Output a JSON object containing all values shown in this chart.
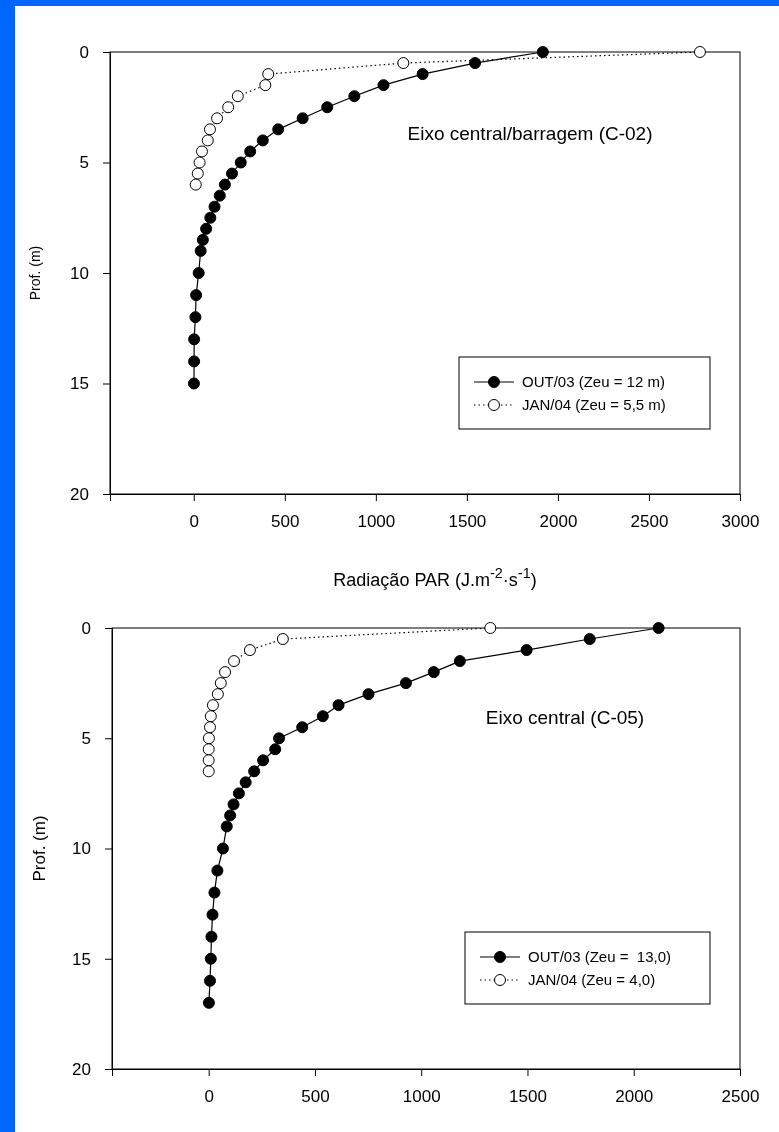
{
  "chart_data": [
    {
      "type": "line",
      "xlabel": "Radiação PAR (J.m$^{-2}$·s$^{-1}$)",
      "ylabel": "Prof. (m)",
      "annotations": [
        "Eixo central/barragem (C-02)"
      ],
      "xlim": [
        -460,
        3000
      ],
      "xticks": [
        0,
        500,
        1000,
        1500,
        2000,
        2500,
        3000
      ],
      "ylim": [
        20,
        0
      ],
      "yticks": [
        0,
        5,
        10,
        15,
        20
      ],
      "grid": false,
      "legend": "bottom right",
      "marker": "circle",
      "series": [
        {
          "name": "OUT/03 (Zeu = 12 m)",
          "color": "#000000",
          "line_style": "solid",
          "x": [
            1917,
            1545,
            1257,
            1042,
            882,
            733,
            598,
            464,
            379,
            310,
            258,
            210,
            171,
            143,
            114,
            91,
            68,
            50,
            38,
            27,
            13,
            9,
            2,
            2,
            1
          ],
          "values": [
            0,
            0.5,
            1,
            1.5,
            2,
            2.5,
            3,
            3.5,
            4,
            4.5,
            5,
            5.5,
            6,
            6.5,
            7,
            7.5,
            8,
            8.5,
            9,
            10,
            11,
            12,
            13,
            14,
            15
          ]
        },
        {
          "name": "JAN/04 (Zeu = 5,5 m)",
          "color": "#ffffff",
          "line_style": "dotted",
          "x": [
            2780,
            1151,
            409,
            393,
            242,
            189,
            128,
            89,
            77,
            45,
            32,
            22,
            11
          ],
          "values": [
            0,
            0.5,
            1,
            1.5,
            2,
            2.5,
            3,
            3.5,
            4,
            4.5,
            5,
            5.5,
            6
          ]
        }
      ]
    },
    {
      "type": "line",
      "ylabel": "Prof. (m)",
      "annotations": [
        "Eixo central (C-05)"
      ],
      "xlim": [
        -455,
        2500
      ],
      "xticks": [
        0,
        500,
        1000,
        1500,
        2000,
        2500
      ],
      "ylim": [
        20,
        0
      ],
      "yticks": [
        0,
        5,
        10,
        15,
        20
      ],
      "grid": false,
      "legend": "bottom right",
      "marker": "circle",
      "series": [
        {
          "name": "OUT/03 (Zeu =  13,0)",
          "color": "#000000",
          "line_style": "solid",
          "x": [
            2117,
            1793,
            1496,
            1182,
            1059,
            928,
            752,
            611,
            537,
            440,
            331,
            313,
            256,
            214,
            174,
            142,
            117,
            101,
            85,
            67,
            41,
            27,
            18,
            13,
            10,
            6,
            1
          ],
          "values": [
            0,
            0.5,
            1,
            1.5,
            2,
            2.5,
            3,
            3.5,
            4,
            4.5,
            5,
            5.5,
            6,
            6.5,
            7,
            7.5,
            8,
            8.5,
            9,
            10,
            11,
            12,
            13,
            14,
            15,
            16,
            17
          ]
        },
        {
          "name": "JAN/04 (Zeu = 4,0)",
          "color": "#ffffff",
          "line_style": "dotted",
          "x": [
            1325,
            349,
            194,
            119,
            77,
            57,
            43,
            20,
            10,
            6,
            1,
            0,
            0,
            0
          ],
          "values": [
            0,
            0.5,
            1,
            1.5,
            2,
            2.5,
            3,
            3.5,
            4,
            4.5,
            5,
            5.5,
            6,
            6.5
          ]
        }
      ]
    }
  ]
}
